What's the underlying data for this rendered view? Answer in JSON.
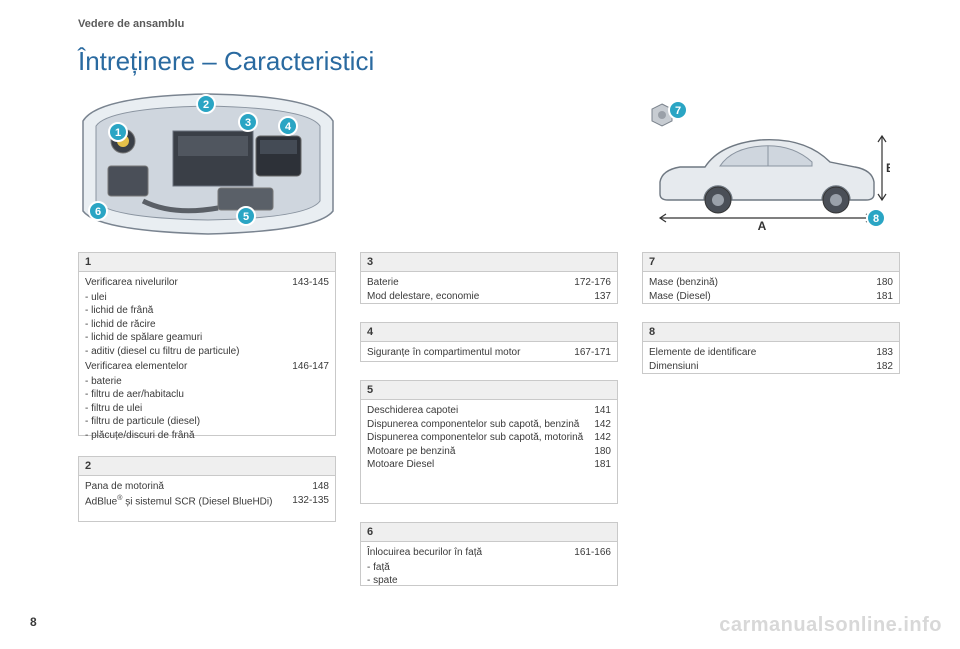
{
  "header": "Vedere de ansamblu",
  "title": "Întreținere – Caracteristici",
  "page_num": "8",
  "watermark": "carmanualsonline.info",
  "callout_color": "#2aa5c4",
  "callout_stroke": "#ffffff",
  "engine_callouts": [
    "1",
    "2",
    "3",
    "4",
    "5",
    "6"
  ],
  "car_callouts": [
    "7",
    "8"
  ],
  "car_dims": {
    "A": "A",
    "B": "B"
  },
  "boxes": {
    "b1": {
      "num": "1",
      "items": [
        {
          "label": "Verificarea nivelurilor",
          "val": "143-145"
        }
      ],
      "sub1": [
        "ulei",
        "lichid de frână",
        "lichid de răcire",
        "lichid de spălare geamuri",
        "aditiv (diesel cu filtru de particule)"
      ],
      "items2": [
        {
          "label": "Verificarea elementelor",
          "val": "146-147"
        }
      ],
      "sub2": [
        "baterie",
        "filtru de aer/habitaclu",
        "filtru de ulei",
        "filtru de particule (diesel)",
        "plăcuțe/discuri de frână"
      ]
    },
    "b2": {
      "num": "2",
      "items": [
        {
          "label": "Pana de motorină",
          "val": "148"
        },
        {
          "label_html": "AdBlue<sup>®</sup> și sistemul SCR (Diesel BlueHDi)",
          "val": "132-135"
        }
      ]
    },
    "b3": {
      "num": "3",
      "items": [
        {
          "label": "Baterie",
          "val": "172-176"
        },
        {
          "label": "Mod delestare, economie",
          "val": "137"
        }
      ]
    },
    "b4": {
      "num": "4",
      "items": [
        {
          "label": "Siguranțe în compartimentul motor",
          "val": "167-171"
        }
      ]
    },
    "b5": {
      "num": "5",
      "items": [
        {
          "label": "Deschiderea capotei",
          "val": "141"
        },
        {
          "label": "Dispunerea componentelor sub capotă, benzină",
          "val": "142"
        },
        {
          "label": "Dispunerea componentelor sub capotă, motorină",
          "val": "142"
        },
        {
          "label": "Motoare pe benzină",
          "val": "180"
        },
        {
          "label": "Motoare Diesel",
          "val": "181"
        }
      ]
    },
    "b6": {
      "num": "6",
      "items": [
        {
          "label": "Înlocuirea becurilor în față",
          "val": "161-166"
        }
      ],
      "sub1": [
        "față",
        "spate"
      ]
    },
    "b7": {
      "num": "7",
      "items": [
        {
          "label": "Mase (benzină)",
          "val": "180"
        },
        {
          "label": "Mase (Diesel)",
          "val": "181"
        }
      ]
    },
    "b8": {
      "num": "8",
      "items": [
        {
          "label": "Elemente de identificare",
          "val": "183"
        },
        {
          "label": "Dimensiuni",
          "val": "182"
        }
      ]
    }
  }
}
